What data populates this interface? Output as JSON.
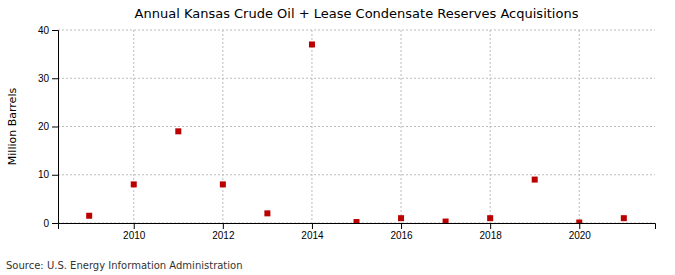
{
  "chart_data": {
    "type": "scatter",
    "title": "Annual Kansas Crude Oil + Lease Condensate Reserves Acquisitions",
    "ylabel": "Million Barrels",
    "annotations": [
      "Source: U.S. Energy Information Administration"
    ],
    "x": [
      2009,
      2010,
      2011,
      2012,
      2013,
      2014,
      2015,
      2016,
      2017,
      2018,
      2019,
      2020,
      2021
    ],
    "values": [
      1.5,
      8.0,
      19.0,
      8.0,
      2.0,
      37.0,
      0.2,
      1.0,
      0.3,
      1.0,
      9.0,
      0.1,
      1.0
    ],
    "color": "#BB0000",
    "marker": "square",
    "xlim": [
      2008.3,
      2021.7
    ],
    "xticks": [
      2010,
      2012,
      2014,
      2016,
      2018,
      2020
    ],
    "ylim": [
      0,
      40
    ],
    "yticks": [
      0,
      10,
      20,
      30,
      40
    ],
    "grid": true
  }
}
